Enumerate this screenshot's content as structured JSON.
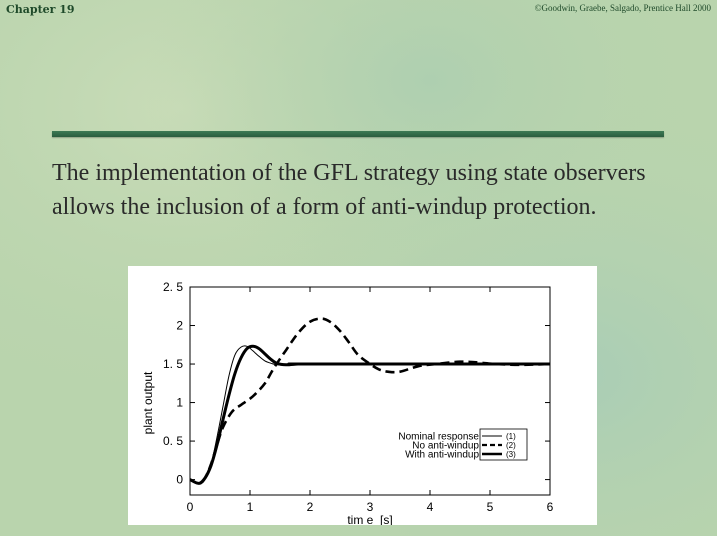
{
  "header": {
    "chapter": "Chapter 19",
    "copyright": "©Goodwin, Graebe, Salgado, Prentice Hall 2000"
  },
  "body_text": "The implementation of the GFL strategy using state observers allows the inclusion of a form of anti-windup protection.",
  "colors": {
    "background": "#b9d4ad",
    "rule": "#336b49",
    "text": "#2a2a2a"
  },
  "chart_data": {
    "type": "line",
    "title": "",
    "xlabel": "tim e  [s]",
    "ylabel": "plant output",
    "xlim": [
      0,
      6
    ],
    "ylim": [
      -0.2,
      2.5
    ],
    "xticks": [
      "0",
      "1",
      "2",
      "3",
      "4",
      "5",
      "6"
    ],
    "yticks": [
      "0",
      "0. 5",
      "1",
      "1. 5",
      "2",
      "2. 5"
    ],
    "grid": false,
    "legend_position": "bottom-right",
    "series": [
      {
        "name": "Nominal response",
        "legend_tag": "(1)",
        "style": "thin-solid",
        "x": [
          0,
          0.15,
          0.25,
          0.35,
          0.45,
          0.55,
          0.65,
          0.75,
          0.85,
          0.95,
          1.05,
          1.15,
          1.25,
          1.35,
          1.45,
          1.6,
          1.8,
          2.0,
          6.0
        ],
        "y": [
          0,
          -0.04,
          0.02,
          0.2,
          0.55,
          0.95,
          1.35,
          1.62,
          1.72,
          1.73,
          1.67,
          1.6,
          1.54,
          1.51,
          1.49,
          1.49,
          1.5,
          1.5,
          1.5
        ]
      },
      {
        "name": "No anti-windup",
        "legend_tag": "(2)",
        "style": "dashed",
        "x": [
          0,
          0.15,
          0.25,
          0.35,
          0.45,
          0.55,
          0.7,
          0.85,
          1.0,
          1.1,
          1.25,
          1.4,
          1.6,
          1.8,
          2.0,
          2.2,
          2.35,
          2.5,
          2.65,
          2.8,
          3.0,
          3.15,
          3.3,
          3.5,
          3.8,
          4.1,
          4.5,
          4.8,
          5.1,
          5.5,
          6.0
        ],
        "y": [
          0,
          -0.05,
          0.02,
          0.2,
          0.45,
          0.68,
          0.88,
          0.97,
          1.05,
          1.12,
          1.25,
          1.45,
          1.68,
          1.9,
          2.05,
          2.09,
          2.04,
          1.93,
          1.78,
          1.62,
          1.5,
          1.43,
          1.4,
          1.4,
          1.47,
          1.5,
          1.53,
          1.52,
          1.5,
          1.49,
          1.5
        ]
      },
      {
        "name": "With anti-windup",
        "legend_tag": "(3)",
        "style": "thick-solid",
        "x": [
          0,
          0.15,
          0.25,
          0.35,
          0.45,
          0.55,
          0.65,
          0.75,
          0.85,
          0.95,
          1.05,
          1.15,
          1.25,
          1.35,
          1.45,
          1.6,
          1.8,
          2.0,
          6.0
        ],
        "y": [
          0,
          -0.05,
          0.02,
          0.18,
          0.45,
          0.78,
          1.1,
          1.38,
          1.58,
          1.7,
          1.73,
          1.7,
          1.63,
          1.56,
          1.51,
          1.49,
          1.5,
          1.5,
          1.5
        ]
      }
    ]
  }
}
